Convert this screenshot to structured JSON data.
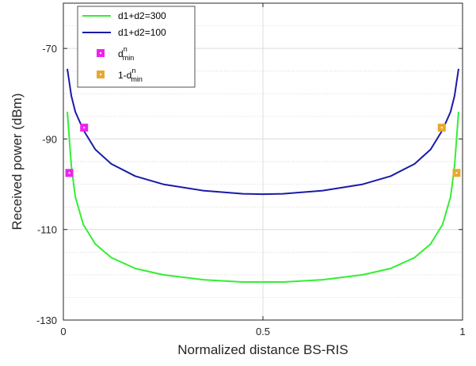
{
  "chart_data": {
    "type": "line",
    "xlabel": "Normalized distance BS-RIS",
    "ylabel": "Received power (dBm)",
    "xlim": [
      0,
      1
    ],
    "ylim": [
      -130,
      -60
    ],
    "xticks": [
      0,
      0.5,
      1
    ],
    "xtick_labels": [
      "0",
      "0.5",
      "1"
    ],
    "yticks": [
      -130,
      -110,
      -90,
      -70
    ],
    "ytick_labels": [
      "-130",
      "-110",
      "-90",
      "-70"
    ],
    "minor_grid_step": 5,
    "grid": true,
    "legend_placement": "top-left",
    "series": [
      {
        "name": "d1+d2=300",
        "color": "#33ee33",
        "style": "line",
        "x": [
          0.01,
          0.02,
          0.03,
          0.05,
          0.08,
          0.12,
          0.18,
          0.25,
          0.35,
          0.45,
          0.5,
          0.55,
          0.65,
          0.75,
          0.82,
          0.88,
          0.92,
          0.95,
          0.97,
          0.98,
          0.99
        ],
        "y": [
          -84.0,
          -96.0,
          -102.8,
          -108.9,
          -113.2,
          -116.2,
          -118.6,
          -120.0,
          -121.1,
          -121.6,
          -121.6,
          -121.6,
          -121.1,
          -120.0,
          -118.6,
          -116.2,
          -113.2,
          -108.9,
          -102.8,
          -96.0,
          -84.0
        ]
      },
      {
        "name": "d1+d2=100",
        "color": "#1a1aaa",
        "style": "line",
        "x": [
          0.01,
          0.02,
          0.03,
          0.05,
          0.08,
          0.12,
          0.18,
          0.25,
          0.35,
          0.45,
          0.5,
          0.55,
          0.65,
          0.75,
          0.82,
          0.88,
          0.92,
          0.95,
          0.97,
          0.98,
          0.99
        ],
        "y": [
          -74.5,
          -80.5,
          -84.0,
          -88.0,
          -92.3,
          -95.5,
          -98.2,
          -100.0,
          -101.4,
          -102.1,
          -102.2,
          -102.1,
          -101.4,
          -100.0,
          -98.2,
          -95.5,
          -92.3,
          -88.0,
          -84.0,
          -80.5,
          -74.5
        ]
      },
      {
        "name": "d",
        "name_sup": "n",
        "name_sub": "min",
        "color": "#ee22ee",
        "style": "marker",
        "x": [
          0.015,
          0.052
        ],
        "y": [
          -97.5,
          -87.5
        ]
      },
      {
        "name": "1-d",
        "name_sup": "n",
        "name_sub": "min",
        "color": "#e8a830",
        "style": "marker",
        "x": [
          0.948,
          0.985
        ],
        "y": [
          -87.5,
          -97.5
        ]
      }
    ]
  }
}
